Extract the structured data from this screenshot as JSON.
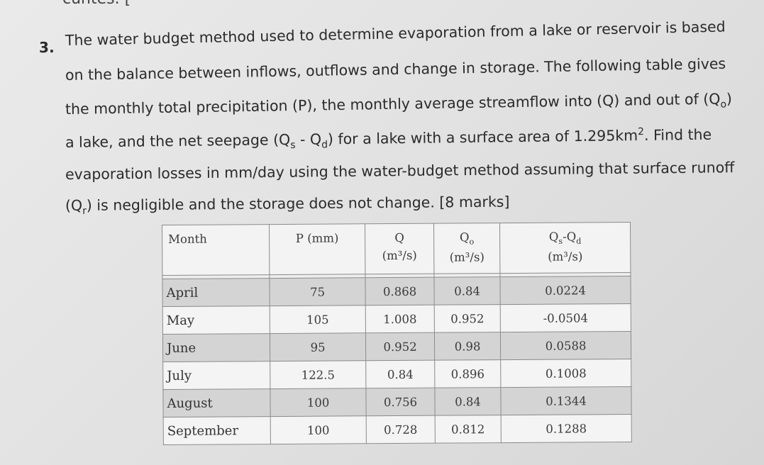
{
  "header_fragment": "cuntes. [",
  "question": {
    "number": "3.",
    "line1": "The water budget method used to determine evaporation from a lake or reservoir is based",
    "line2": "on the balance between inflows, outflows and change in storage. The following table gives",
    "line3": "the monthly total precipitation (P), the monthly average streamflow into (Q) and out of (Q",
    "line3_sub": "o",
    "line3_end": ")",
    "line4_a": "a lake, and the net seepage (Q",
    "line4_sub1": "s",
    "line4_mid": " - Q",
    "line4_sub2": "d",
    "line4_b": ") for a lake with a surface area of 1.295km",
    "line4_sup": "2",
    "line4_c": ". Find the",
    "line5": "evaporation losses in mm/day using the water-budget method assuming that surface runoff",
    "line6_a": "(Q",
    "line6_sub": "r",
    "line6_b": ") is negligible and the storage does not change. [8 marks]"
  },
  "table": {
    "headers": {
      "month": "Month",
      "p": "P (mm)",
      "q_top": "Q",
      "q_unit": "(m³/s)",
      "qo_top": "Q",
      "qo_sub": "o",
      "qo_unit": "(m³/s)",
      "qs_top": "Q",
      "qs_sub1": "s",
      "qs_dash": "-Q",
      "qs_sub2": "d",
      "qs_unit": "(m³/s)"
    },
    "rows": [
      {
        "month": "April",
        "p": "75",
        "q": "0.868",
        "qo": "0.84",
        "qsd": "0.0224"
      },
      {
        "month": "May",
        "p": "105",
        "q": "1.008",
        "qo": "0.952",
        "qsd": "-0.0504"
      },
      {
        "month": "June",
        "p": "95",
        "q": "0.952",
        "qo": "0.98",
        "qsd": "0.0588"
      },
      {
        "month": "July",
        "p": "122.5",
        "q": "0.84",
        "qo": "0.896",
        "qsd": "0.1008"
      },
      {
        "month": "August",
        "p": "100",
        "q": "0.756",
        "qo": "0.84",
        "qsd": "0.1344"
      },
      {
        "month": "September",
        "p": "100",
        "q": "0.728",
        "qo": "0.812",
        "qsd": "0.1288"
      }
    ]
  }
}
